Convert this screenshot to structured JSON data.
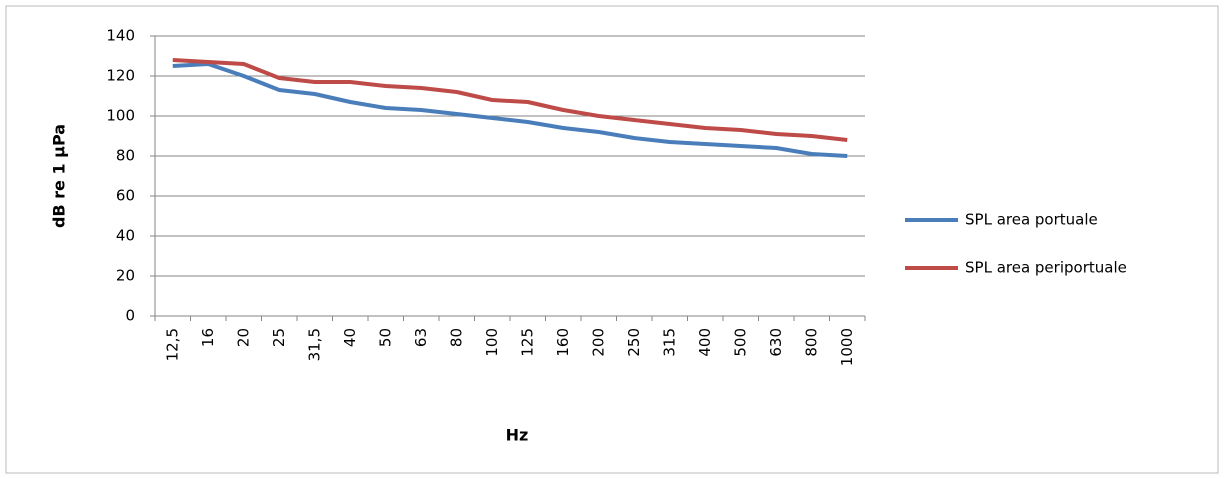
{
  "chart_data": {
    "type": "line",
    "x_label": "Hz",
    "y_label": "dB re 1 µPa",
    "categories": [
      "12,5",
      "16",
      "20",
      "25",
      "31,5",
      "40",
      "50",
      "63",
      "80",
      "100",
      "125",
      "160",
      "200",
      "250",
      "315",
      "400",
      "500",
      "630",
      "800",
      "1000"
    ],
    "series": [
      {
        "name": "SPL area portuale",
        "color": "#4a7ebb",
        "values": [
          125,
          126,
          120,
          113,
          111,
          107,
          104,
          103,
          101,
          99,
          97,
          94,
          92,
          89,
          87,
          86,
          85,
          84,
          81,
          80
        ]
      },
      {
        "name": "SPL area periportuale",
        "color": "#be4b48",
        "values": [
          128,
          127,
          126,
          119,
          117,
          117,
          115,
          114,
          112,
          108,
          107,
          103,
          100,
          98,
          96,
          94,
          93,
          91,
          90,
          88
        ]
      }
    ],
    "ylim": [
      0,
      140
    ],
    "yticks": [
      0,
      20,
      40,
      60,
      80,
      100,
      120,
      140
    ],
    "grid": true,
    "legend": "right"
  }
}
